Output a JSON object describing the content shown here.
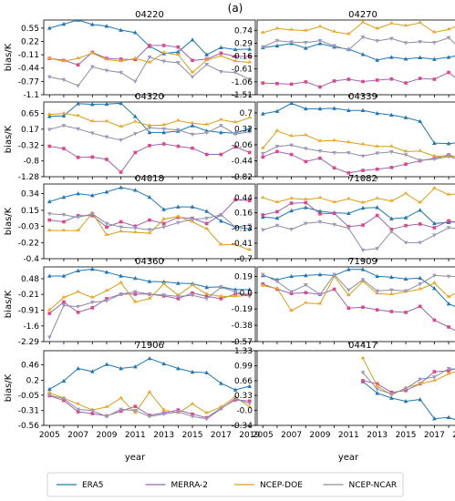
{
  "figure_label": "(a)",
  "xlabel": "year",
  "ylabel": "bias/K",
  "years": [
    2005,
    2006,
    2007,
    2008,
    2009,
    2010,
    2011,
    2012,
    2013,
    2014,
    2015,
    2016,
    2017,
    2018,
    2019
  ],
  "legend": [
    {
      "name": "ERA5",
      "color": "#1f77b4"
    },
    {
      "name": "MERRA-2",
      "color": "#9467bd"
    },
    {
      "name": "NCEP-DOE",
      "color": "#d4a017"
    },
    {
      "name": "NCEP-NCAR",
      "color": "#8c8c9c"
    }
  ],
  "chart_data": [
    {
      "type": "line",
      "title": "04220",
      "xlabel": "year",
      "ylabel": "bias/K",
      "yticks": [
        "0.55",
        "0.22",
        "-0.11",
        "-0.44",
        "-0.77",
        "-1.1"
      ],
      "ylim": [
        -1.1,
        0.75
      ],
      "x": [
        2005,
        2006,
        2007,
        2008,
        2009,
        2010,
        2011,
        2012,
        2013,
        2014,
        2015,
        2016,
        2017,
        2018,
        2019
      ],
      "series": [
        {
          "name": "ERA5",
          "values": [
            0.55,
            0.65,
            0.75,
            0.64,
            0.6,
            0.5,
            0.44,
            0.1,
            -0.08,
            -0.04,
            0.26,
            -0.11,
            0.07,
            0.02,
            0.03
          ]
        },
        {
          "name": "MERRA-2",
          "values": [
            -0.2,
            -0.25,
            -0.36,
            -0.05,
            -0.2,
            -0.22,
            -0.23,
            0.12,
            0.12,
            0.08,
            -0.25,
            -0.22,
            -0.07,
            -0.15,
            -0.15
          ]
        },
        {
          "name": "NCEP-DOE",
          "values": [
            -0.2,
            -0.27,
            -0.2,
            -0.07,
            -0.23,
            -0.27,
            -0.2,
            -0.3,
            -0.06,
            -0.11,
            -0.55,
            -0.24,
            -0.14,
            -0.27,
            -0.3
          ]
        },
        {
          "name": "NCEP-NCAR",
          "values": [
            -0.66,
            -0.73,
            -0.88,
            -0.41,
            -0.5,
            -0.55,
            -0.77,
            -0.17,
            -0.27,
            -0.31,
            -0.66,
            -0.35,
            -0.53,
            -0.55,
            -0.72
          ]
        }
      ]
    },
    {
      "type": "line",
      "title": "04270",
      "xlabel": "year",
      "ylabel": "bias/K",
      "yticks": [
        "0.74",
        "0.29",
        "-0.16",
        "-0.61",
        "-1.06",
        "-1.51"
      ],
      "ylim": [
        -1.51,
        1.1
      ],
      "x": [
        2005,
        2006,
        2007,
        2008,
        2009,
        2010,
        2011,
        2012,
        2013,
        2014,
        2015,
        2016,
        2017,
        2018,
        2019
      ],
      "series": [
        {
          "name": "ERA5",
          "values": [
            0.14,
            0.2,
            0.28,
            0.12,
            0.28,
            0.16,
            0.08,
            -0.1,
            -0.3,
            -0.2,
            -0.26,
            -0.21,
            -0.27,
            -0.2,
            -0.11
          ]
        },
        {
          "name": "MERRA-2",
          "values": [
            -1.1,
            -1.12,
            -1.14,
            -1.06,
            -1.24,
            -1.03,
            -0.97,
            -1.05,
            -1.0,
            -0.96,
            -1.1,
            -0.94,
            -0.97,
            -0.73,
            -1.12
          ]
        },
        {
          "name": "NCEP-DOE",
          "values": [
            0.66,
            0.8,
            0.76,
            0.73,
            0.87,
            0.69,
            0.61,
            1.02,
            0.8,
            0.98,
            0.9,
            1.0,
            0.67,
            0.77,
            0.99
          ]
        },
        {
          "name": "NCEP-NCAR",
          "values": [
            0.16,
            0.38,
            0.33,
            0.31,
            0.38,
            0.2,
            0.06,
            0.5,
            0.37,
            0.45,
            0.3,
            0.34,
            0.31,
            0.48,
            0.01
          ]
        }
      ]
    },
    {
      "type": "line",
      "title": "04320",
      "xlabel": "year",
      "ylabel": "bias/K",
      "yticks": [
        "0.65",
        "0.17",
        "-0.32",
        "-0.8",
        "-1.28"
      ],
      "ylim": [
        -1.28,
        1.0
      ],
      "x": [
        2005,
        2006,
        2007,
        2008,
        2009,
        2010,
        2011,
        2012,
        2013,
        2014,
        2015,
        2016,
        2017,
        2018,
        2019
      ],
      "series": [
        {
          "name": "ERA5",
          "values": [
            0.56,
            0.58,
            0.95,
            0.93,
            0.94,
            0.96,
            0.56,
            0.07,
            0.07,
            0.11,
            0.28,
            0.12,
            0.07,
            0.05,
            0.19
          ]
        },
        {
          "name": "MERRA-2",
          "values": [
            -0.35,
            -0.42,
            -0.69,
            -0.68,
            -0.75,
            -1.14,
            -0.54,
            -0.33,
            -0.28,
            -0.35,
            -0.41,
            -0.6,
            -0.6,
            -0.37,
            -0.54
          ]
        },
        {
          "name": "NCEP-DOE",
          "values": [
            0.62,
            0.65,
            0.58,
            0.41,
            0.41,
            0.25,
            0.4,
            0.28,
            0.3,
            0.43,
            0.35,
            0.31,
            0.46,
            0.38,
            0.52
          ]
        },
        {
          "name": "NCEP-NCAR",
          "values": [
            0.16,
            0.28,
            0.18,
            0.05,
            -0.07,
            -0.16,
            0.03,
            0.21,
            0.18,
            0.15,
            0.01,
            0.06,
            0.28,
            0.02,
            0.09
          ]
        }
      ]
    },
    {
      "type": "line",
      "title": "04339",
      "xlabel": "year",
      "ylabel": "bias/K",
      "yticks": [
        "0.7",
        "0.32",
        "-0.06",
        "-0.44",
        "-0.82"
      ],
      "ylim": [
        -0.82,
        0.96
      ],
      "x": [
        2005,
        2006,
        2007,
        2008,
        2009,
        2010,
        2011,
        2012,
        2013,
        2014,
        2015,
        2016,
        2017,
        2018,
        2019
      ],
      "series": [
        {
          "name": "ERA5",
          "values": [
            0.68,
            0.74,
            0.93,
            0.8,
            0.8,
            0.81,
            0.76,
            0.76,
            0.69,
            0.65,
            0.59,
            0.5,
            -0.02,
            -0.03,
            0.0
          ]
        },
        {
          "name": "MERRA-2",
          "values": [
            -0.35,
            -0.22,
            -0.29,
            -0.46,
            -0.38,
            -0.61,
            -0.73,
            -0.67,
            -0.64,
            -0.6,
            -0.52,
            -0.44,
            -0.38,
            -0.3,
            -0.4
          ]
        },
        {
          "name": "NCEP-DOE",
          "values": [
            -0.14,
            0.27,
            0.15,
            0.17,
            0.03,
            0.04,
            0.0,
            -0.05,
            -0.1,
            -0.1,
            -0.22,
            -0.21,
            -0.33,
            -0.33,
            -0.36
          ]
        },
        {
          "name": "NCEP-NCAR",
          "values": [
            -0.27,
            -0.1,
            -0.07,
            -0.15,
            -0.21,
            -0.25,
            -0.25,
            -0.33,
            -0.26,
            -0.23,
            -0.3,
            -0.43,
            -0.4,
            -0.34,
            -0.44
          ]
        }
      ]
    },
    {
      "type": "line",
      "title": "04018",
      "xlabel": "year",
      "ylabel": "bias/K",
      "yticks": [
        "0.34",
        "0.15",
        "-0.03",
        "-0.22",
        "-0.4"
      ],
      "ylim": [
        -0.4,
        0.45
      ],
      "x": [
        2005,
        2006,
        2007,
        2008,
        2009,
        2010,
        2011,
        2012,
        2013,
        2014,
        2015,
        2016,
        2017,
        2018,
        2019
      ],
      "series": [
        {
          "name": "ERA5",
          "values": [
            0.25,
            0.3,
            0.34,
            0.32,
            0.36,
            0.41,
            0.38,
            0.3,
            0.16,
            0.19,
            0.19,
            0.14,
            0.03,
            -0.04,
            -0.06
          ]
        },
        {
          "name": "MERRA-2",
          "values": [
            0.04,
            0.02,
            0.09,
            0.09,
            -0.04,
            0.02,
            -0.03,
            0.04,
            0.0,
            0.07,
            0.06,
            0.0,
            0.1,
            0.27,
            0.26
          ]
        },
        {
          "name": "NCEP-DOE",
          "values": [
            -0.08,
            -0.08,
            -0.08,
            0.12,
            -0.13,
            -0.09,
            -0.1,
            -0.11,
            0.05,
            0.08,
            0.02,
            -0.06,
            -0.24,
            -0.24,
            -0.3
          ]
        },
        {
          "name": "NCEP-NCAR",
          "values": [
            0.11,
            0.1,
            0.07,
            0.11,
            0.0,
            -0.04,
            -0.05,
            -0.07,
            -0.04,
            0.01,
            0.05,
            0.06,
            0.1,
            -0.04,
            -0.02
          ]
        }
      ]
    },
    {
      "type": "line",
      "title": "71082",
      "xlabel": "year",
      "ylabel": "bias/K",
      "yticks": [
        "0.44",
        "0.16",
        "-0.13",
        "-0.41",
        "-0.7"
      ],
      "ylim": [
        -0.7,
        0.7
      ],
      "x": [
        2005,
        2006,
        2007,
        2008,
        2009,
        2010,
        2011,
        2012,
        2013,
        2014,
        2015,
        2016,
        2017,
        2018,
        2019
      ],
      "series": [
        {
          "name": "ERA5",
          "values": [
            0.08,
            0.06,
            0.2,
            0.26,
            0.19,
            0.16,
            0.15,
            0.25,
            0.26,
            0.05,
            0.07,
            0.21,
            -0.04,
            -0.02,
            0.01
          ]
        },
        {
          "name": "MERRA-2",
          "values": [
            0.12,
            0.18,
            0.34,
            0.35,
            0.14,
            0.15,
            -0.1,
            -0.07,
            0.11,
            -0.15,
            -0.08,
            -0.05,
            -0.12,
            0.01,
            -0.05
          ]
        },
        {
          "name": "NCEP-DOE",
          "values": [
            0.44,
            0.36,
            0.43,
            0.41,
            0.44,
            0.36,
            0.42,
            0.35,
            0.43,
            0.38,
            0.52,
            0.35,
            0.62,
            0.5,
            0.52
          ]
        },
        {
          "name": "NCEP-NCAR",
          "values": [
            -0.16,
            -0.08,
            -0.15,
            -0.04,
            -0.01,
            -0.06,
            -0.13,
            -0.54,
            -0.51,
            -0.19,
            -0.4,
            -0.4,
            -0.26,
            -0.12,
            -0.15
          ]
        }
      ]
    },
    {
      "type": "line",
      "title": "04360",
      "xlabel": "year",
      "ylabel": "bias/K",
      "yticks": [
        "0.48",
        "-0.21",
        "-0.91",
        "-1.6",
        "-2.29"
      ],
      "ylim": [
        -2.29,
        1.0
      ],
      "x": [
        2005,
        2006,
        2007,
        2008,
        2009,
        2010,
        2011,
        2012,
        2013,
        2014,
        2015,
        2016,
        2017,
        2018,
        2019
      ],
      "series": [
        {
          "name": "ERA5",
          "values": [
            0.6,
            0.6,
            0.83,
            0.9,
            0.77,
            0.6,
            0.5,
            0.36,
            0.34,
            0.28,
            0.26,
            0.1,
            0.12,
            0.0,
            0.0
          ]
        },
        {
          "name": "MERRA-2",
          "values": [
            -1.05,
            -0.55,
            -1.0,
            -0.8,
            -0.4,
            -0.2,
            -0.2,
            -0.2,
            -0.28,
            -0.4,
            -0.15,
            -0.3,
            -0.4,
            -0.2,
            -0.2
          ]
        },
        {
          "name": "NCEP-DOE",
          "values": [
            -0.9,
            -0.35,
            -0.1,
            -0.35,
            -0.05,
            0.3,
            -0.55,
            -0.4,
            0.25,
            -0.25,
            0.2,
            -0.2,
            -0.3,
            -0.3,
            -0.25
          ]
        },
        {
          "name": "NCEP-NCAR",
          "values": [
            -2.1,
            -0.7,
            -0.75,
            -0.56,
            -0.5,
            -0.2,
            -0.1,
            -0.2,
            -0.24,
            -0.3,
            -0.25,
            -0.4,
            0.1,
            -0.1,
            -0.3
          ]
        }
      ]
    },
    {
      "type": "line",
      "title": "71909",
      "xlabel": "year",
      "ylabel": "bias/K",
      "yticks": [
        "0.19",
        "0.0",
        "-0.19",
        "-0.38",
        "-0.57"
      ],
      "ylim": [
        -0.57,
        0.3
      ],
      "x": [
        2005,
        2006,
        2007,
        2008,
        2009,
        2010,
        2011,
        2012,
        2013,
        2014,
        2015,
        2016,
        2017,
        2018,
        2019
      ],
      "series": [
        {
          "name": "ERA5",
          "values": [
            0.2,
            0.15,
            0.19,
            0.2,
            0.21,
            0.2,
            0.27,
            0.27,
            0.19,
            0.18,
            0.16,
            0.17,
            0.05,
            -0.13,
            -0.2
          ]
        },
        {
          "name": "MERRA-2",
          "values": [
            0.1,
            0.04,
            -0.01,
            0.0,
            -0.02,
            0.04,
            -0.18,
            -0.17,
            -0.2,
            -0.22,
            -0.23,
            -0.16,
            -0.32,
            -0.4,
            -0.49
          ]
        },
        {
          "name": "NCEP-DOE",
          "values": [
            0.08,
            0.05,
            -0.21,
            -0.12,
            -0.13,
            0.19,
            -0.03,
            0.13,
            -0.01,
            -0.02,
            0.01,
            0.04,
            0.11,
            -0.05,
            0.04
          ]
        },
        {
          "name": "NCEP-NCAR",
          "values": [
            0.21,
            0.13,
            0.01,
            0.09,
            -0.02,
            0.21,
            0.03,
            0.15,
            0.02,
            0.03,
            0.02,
            0.1,
            0.2,
            0.19,
            0.19
          ]
        }
      ]
    },
    {
      "type": "line",
      "title": "71906",
      "xlabel": "year",
      "ylabel": "bias/K",
      "yticks": [
        "0.46",
        "0.2",
        "-0.05",
        "-0.31",
        "-0.56"
      ],
      "ylim": [
        -0.56,
        0.7
      ],
      "x": [
        2005,
        2006,
        2007,
        2008,
        2009,
        2010,
        2011,
        2012,
        2013,
        2014,
        2015,
        2016,
        2017,
        2018,
        2019
      ],
      "series": [
        {
          "name": "ERA5",
          "values": [
            0.05,
            0.19,
            0.4,
            0.35,
            0.47,
            0.4,
            0.43,
            0.57,
            0.48,
            0.4,
            0.34,
            0.33,
            0.15,
            0.04,
            0.1
          ]
        },
        {
          "name": "MERRA-2",
          "values": [
            -0.06,
            -0.14,
            -0.33,
            -0.36,
            -0.4,
            -0.32,
            -0.24,
            -0.39,
            -0.35,
            -0.3,
            -0.37,
            -0.43,
            -0.27,
            -0.13,
            -0.15
          ]
        },
        {
          "name": "NCEP-DOE",
          "values": [
            -0.01,
            -0.1,
            -0.2,
            -0.3,
            -0.25,
            -0.1,
            -0.35,
            0.0,
            -0.3,
            -0.35,
            -0.2,
            -0.35,
            -0.25,
            -0.08,
            -0.25
          ]
        },
        {
          "name": "NCEP-NCAR",
          "values": [
            -0.05,
            -0.11,
            -0.29,
            -0.31,
            -0.41,
            -0.29,
            -0.31,
            -0.41,
            -0.37,
            -0.33,
            -0.41,
            -0.45,
            -0.28,
            -0.11,
            -0.19
          ]
        }
      ]
    },
    {
      "type": "line",
      "title": "04417",
      "xlabel": "year",
      "ylabel": "bias/K",
      "yticks": [
        "1.33",
        "0.99",
        "0.66",
        "0.33",
        "-0.0",
        "-0.34"
      ],
      "ylim": [
        -0.34,
        1.33
      ],
      "x": [
        2012,
        2013,
        2014,
        2015,
        2016,
        2017,
        2018,
        2019
      ],
      "series": [
        {
          "name": "ERA5",
          "values": [
            0.64,
            0.38,
            0.27,
            0.2,
            0.24,
            -0.19,
            -0.16,
            -0.27
          ]
        },
        {
          "name": "MERRA-2",
          "values": [
            0.66,
            0.59,
            0.4,
            0.44,
            0.59,
            0.86,
            0.88,
            0.99
          ]
        },
        {
          "name": "NCEP-DOE",
          "values": [
            1.16,
            0.54,
            0.34,
            0.5,
            0.59,
            0.66,
            0.81,
            0.93
          ]
        },
        {
          "name": "NCEP-NCAR",
          "values": [
            0.84,
            0.47,
            0.36,
            0.48,
            0.69,
            0.74,
            0.93,
            0.9
          ]
        }
      ]
    }
  ]
}
